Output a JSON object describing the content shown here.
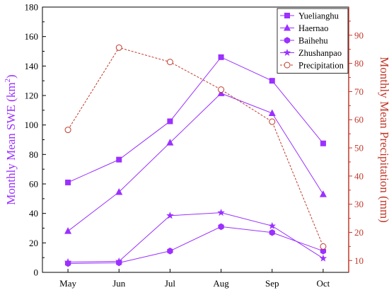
{
  "chart_data": {
    "type": "line",
    "categories": [
      "May",
      "Jun",
      "Jul",
      "Aug",
      "Sep",
      "Oct"
    ],
    "ylabel_left_text": "Monthly Mean SWE (km",
    "ylabel_left_sup": "2",
    "ylabel_left_close": ")",
    "ylabel_right": "Monthly Mean Precipitation (mm)",
    "ylim_left": [
      0,
      180
    ],
    "yticks_left": [
      "0",
      "20",
      "40",
      "60",
      "80",
      "100",
      "120",
      "140",
      "160",
      "180"
    ],
    "ylim_right": [
      5.8,
      100
    ],
    "yticks_right": [
      "10",
      "20",
      "30",
      "40",
      "50",
      "60",
      "70",
      "80",
      "90"
    ],
    "legend_position": "top-right",
    "grid": false,
    "colors": {
      "swe": "#9B30FF",
      "precip": "#C0392B"
    },
    "series": [
      {
        "name": "Yuelianghu",
        "marker": "square",
        "axis": "left",
        "values": [
          61,
          76.5,
          102.5,
          146,
          130,
          87.5
        ]
      },
      {
        "name": "Haernao",
        "marker": "triangle",
        "axis": "left",
        "values": [
          28,
          54.5,
          88,
          121.5,
          108,
          53
        ]
      },
      {
        "name": "Baihehu",
        "marker": "hexagon",
        "axis": "left",
        "values": [
          6,
          6.5,
          14.5,
          31,
          27,
          14.5
        ]
      },
      {
        "name": "Zhushanpao",
        "marker": "star",
        "axis": "left",
        "values": [
          7,
          7.5,
          38.5,
          40.5,
          31.5,
          9.5
        ]
      },
      {
        "name": "Precipitation",
        "marker": "circle",
        "axis": "right",
        "dashed": true,
        "values": [
          56.4,
          85.6,
          80.5,
          70.7,
          59.3,
          15
        ]
      }
    ]
  }
}
